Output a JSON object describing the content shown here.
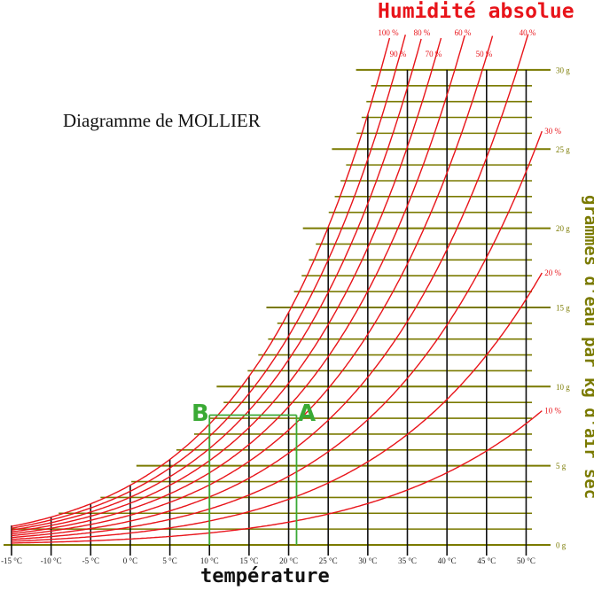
{
  "labels": {
    "header": "Humidité absolue",
    "title": "Diagramme de MOLLIER",
    "x_axis": "température",
    "y_axis": "grammes d'eau par kg d'air sec",
    "point_a": "A",
    "point_b": "B"
  },
  "chart_data": {
    "type": "line",
    "title": "Diagramme de MOLLIER",
    "xlabel": "température",
    "ylabel": "grammes d'eau par kg d'air sec",
    "xlim": [
      -15,
      52
    ],
    "ylim": [
      0,
      30
    ],
    "x_ticks": [
      -15,
      -10,
      -5,
      0,
      5,
      10,
      15,
      20,
      25,
      30,
      35,
      40,
      45,
      50
    ],
    "x_tick_labels": [
      "-15 °C",
      "-10 °C",
      "-5 °C",
      "0 °C",
      "5 °C",
      "10 °C",
      "15 °C",
      "20 °C",
      "25 °C",
      "30 °C",
      "35 °C",
      "40 °C",
      "45 °C",
      "50 °C"
    ],
    "y_tick_values": [
      0,
      5,
      10,
      15,
      20,
      25,
      30
    ],
    "y_tick_labels": [
      "0 g",
      "5 g",
      "10 g",
      "15 g",
      "20 g",
      "25 g",
      "30 g"
    ],
    "y_minor_step": 1,
    "relative_humidity_curves": [
      {
        "name": "100 %",
        "rh": 1.0
      },
      {
        "name": "90 %",
        "rh": 0.9
      },
      {
        "name": "80 %",
        "rh": 0.8
      },
      {
        "name": "70 %",
        "rh": 0.7
      },
      {
        "name": "60 %",
        "rh": 0.6
      },
      {
        "name": "50 %",
        "rh": 0.5
      },
      {
        "name": "40 %",
        "rh": 0.4
      },
      {
        "name": "30 %",
        "rh": 0.3
      },
      {
        "name": "20 %",
        "rh": 0.2
      },
      {
        "name": "10 %",
        "rh": 0.1
      }
    ],
    "points": [
      {
        "name": "A",
        "temperature": 21,
        "moisture_g": 8.2
      },
      {
        "name": "B",
        "temperature": 10,
        "moisture_g": 8.2
      }
    ],
    "colors": {
      "curves": "#e8141a",
      "grid": "#7a7a00",
      "verticals": "#111111",
      "points": "#3aaa35"
    }
  }
}
